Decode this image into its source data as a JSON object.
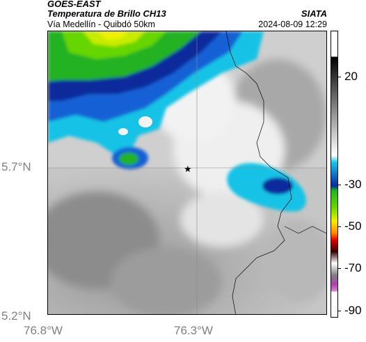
{
  "header": {
    "satellite": "GOES-EAST",
    "product": "Temperatura de Brillo CH13",
    "region": "Vía Medellín - Quibdó 50km",
    "organization": "SIATA",
    "timestamp": "2024-08-09 12:29"
  },
  "axes": {
    "lat_labels": [
      "5.7°N",
      "5.2°N"
    ],
    "lon_labels": [
      "76.8°W",
      "76.3°W"
    ]
  },
  "colorbar": {
    "tick_labels": [
      "20",
      "-30",
      "-50",
      "-70",
      "-90"
    ]
  },
  "map": {
    "marker_icon": "star-icon"
  },
  "colors": {
    "green_cold": "#22b222",
    "yellow": "#f2f000",
    "blue_dark": "#0a2a9c",
    "cyan": "#19c3e6",
    "gray_light": "#e8e8e8"
  }
}
